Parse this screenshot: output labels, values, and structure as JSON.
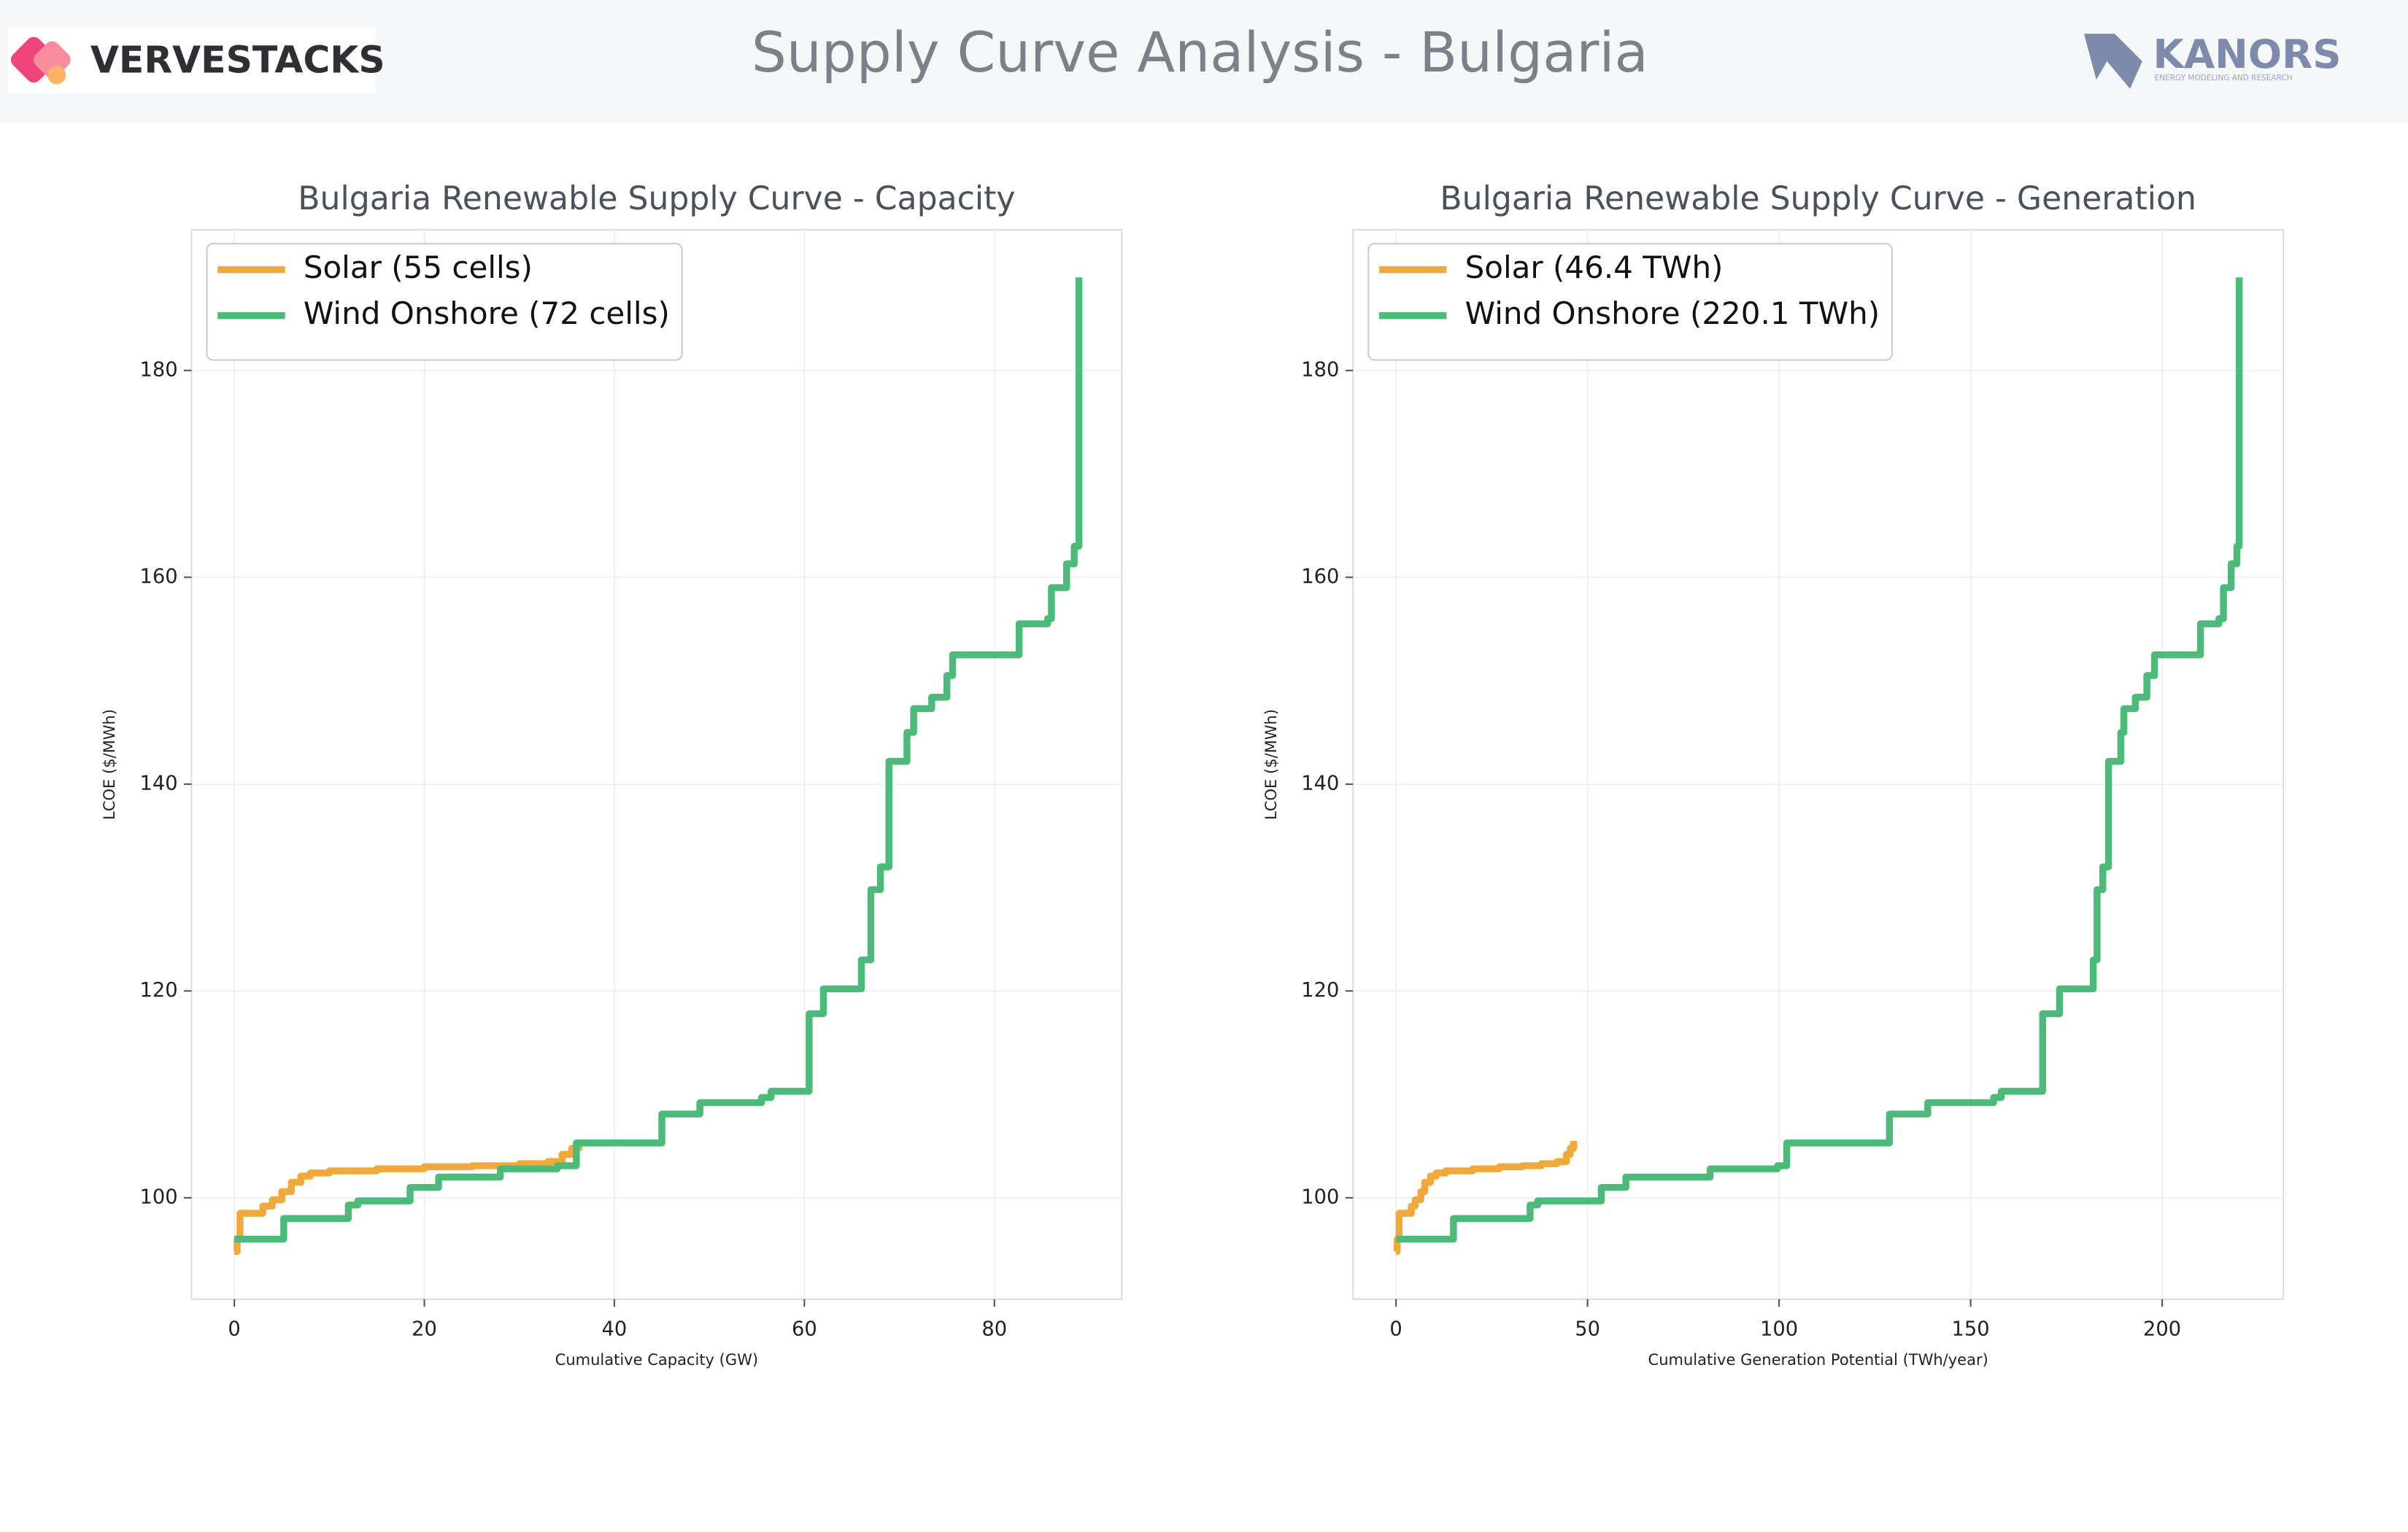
{
  "header": {
    "title": "Supply Curve Analysis - Bulgaria",
    "logo_left": "VERVESTACKS",
    "logo_right": "KANORS",
    "logo_right_sub": "ENERGY MODELING AND RESEARCH"
  },
  "chart_data": [
    {
      "type": "line",
      "drawstyle": "steps-post",
      "title": "Bulgaria Renewable Supply Curve - Capacity",
      "x_label": "Cumulative Capacity (GW)",
      "y_label": "LCOE ($/MWh)",
      "xlim": [
        -4.5,
        93.4
      ],
      "ylim": [
        90.2,
        193.6
      ],
      "xticks": [
        0,
        20,
        40,
        60,
        80
      ],
      "yticks": [
        100,
        120,
        140,
        160,
        180
      ],
      "grid": true,
      "legend": "upper left",
      "series": [
        {
          "name": "Solar (55 cells)",
          "color": "#f2a93b",
          "x": [
            0,
            0.3,
            0.6,
            3,
            4,
            5,
            6,
            7,
            8,
            10,
            15,
            20,
            25,
            30,
            33,
            34.5,
            35.5,
            36.3
          ],
          "values": [
            94.8,
            96,
            98.5,
            99.2,
            99.8,
            100.6,
            101.5,
            102.1,
            102.4,
            102.6,
            102.8,
            103.0,
            103.1,
            103.3,
            103.5,
            104.2,
            104.8,
            105.5
          ]
        },
        {
          "name": "Wind Onshore (72 cells)",
          "color": "#4cbb7a",
          "x": [
            0,
            5.2,
            12,
            13,
            18.5,
            21.5,
            28,
            34,
            36,
            45,
            49,
            55.5,
            56.5,
            60.5,
            62,
            66,
            67,
            68,
            68.9,
            70.8,
            71.5,
            73.4,
            75,
            75.6,
            82.6,
            85.6,
            86,
            87.6,
            88.4,
            88.9
          ],
          "values": [
            96,
            98,
            99.3,
            99.7,
            101,
            102,
            102.8,
            103.1,
            105.3,
            108.1,
            109.2,
            109.7,
            110.3,
            117.8,
            120.2,
            123,
            129.8,
            132,
            142.2,
            145,
            147.3,
            148.4,
            150.5,
            152.5,
            155.5,
            156,
            159,
            161.3,
            163,
            189
          ]
        }
      ]
    },
    {
      "type": "line",
      "drawstyle": "steps-post",
      "title": "Bulgaria Renewable Supply Curve - Generation",
      "x_label": "Cumulative Generation Potential (TWh/year)",
      "y_label": "LCOE ($/MWh)",
      "xlim": [
        -11.2,
        231.6
      ],
      "ylim": [
        90.2,
        193.6
      ],
      "xticks": [
        0,
        50,
        100,
        150,
        200
      ],
      "yticks": [
        100,
        120,
        140,
        160,
        180
      ],
      "grid": true,
      "legend": "upper left",
      "series": [
        {
          "name": "Solar (46.4 TWh)",
          "color": "#f2a93b",
          "x": [
            0,
            0.3,
            0.8,
            4,
            5,
            6.5,
            7.5,
            9,
            10.5,
            13,
            20,
            27,
            33,
            38,
            42,
            44.5,
            45.5,
            46.4
          ],
          "values": [
            94.8,
            96,
            98.5,
            99.2,
            99.8,
            100.6,
            101.5,
            102.1,
            102.4,
            102.6,
            102.8,
            103.0,
            103.1,
            103.3,
            103.5,
            104.2,
            104.8,
            105.5
          ]
        },
        {
          "name": "Wind Onshore (220.1 TWh)",
          "color": "#4cbb7a",
          "x": [
            0,
            15,
            35,
            37,
            53.6,
            60,
            82,
            99.6,
            102,
            128.8,
            138.8,
            156,
            158,
            168.8,
            173.2,
            182,
            183,
            184.5,
            186,
            189.2,
            190,
            193,
            196,
            198,
            210,
            214.8,
            216,
            218,
            219.5,
            220.1
          ],
          "values": [
            96,
            98,
            99.3,
            99.7,
            101,
            102,
            102.8,
            103.1,
            105.3,
            108.1,
            109.2,
            109.7,
            110.3,
            117.8,
            120.2,
            123,
            129.8,
            132,
            142.2,
            145,
            147.3,
            148.4,
            150.5,
            152.5,
            155.5,
            156,
            159,
            161.3,
            163,
            189
          ]
        }
      ]
    }
  ]
}
